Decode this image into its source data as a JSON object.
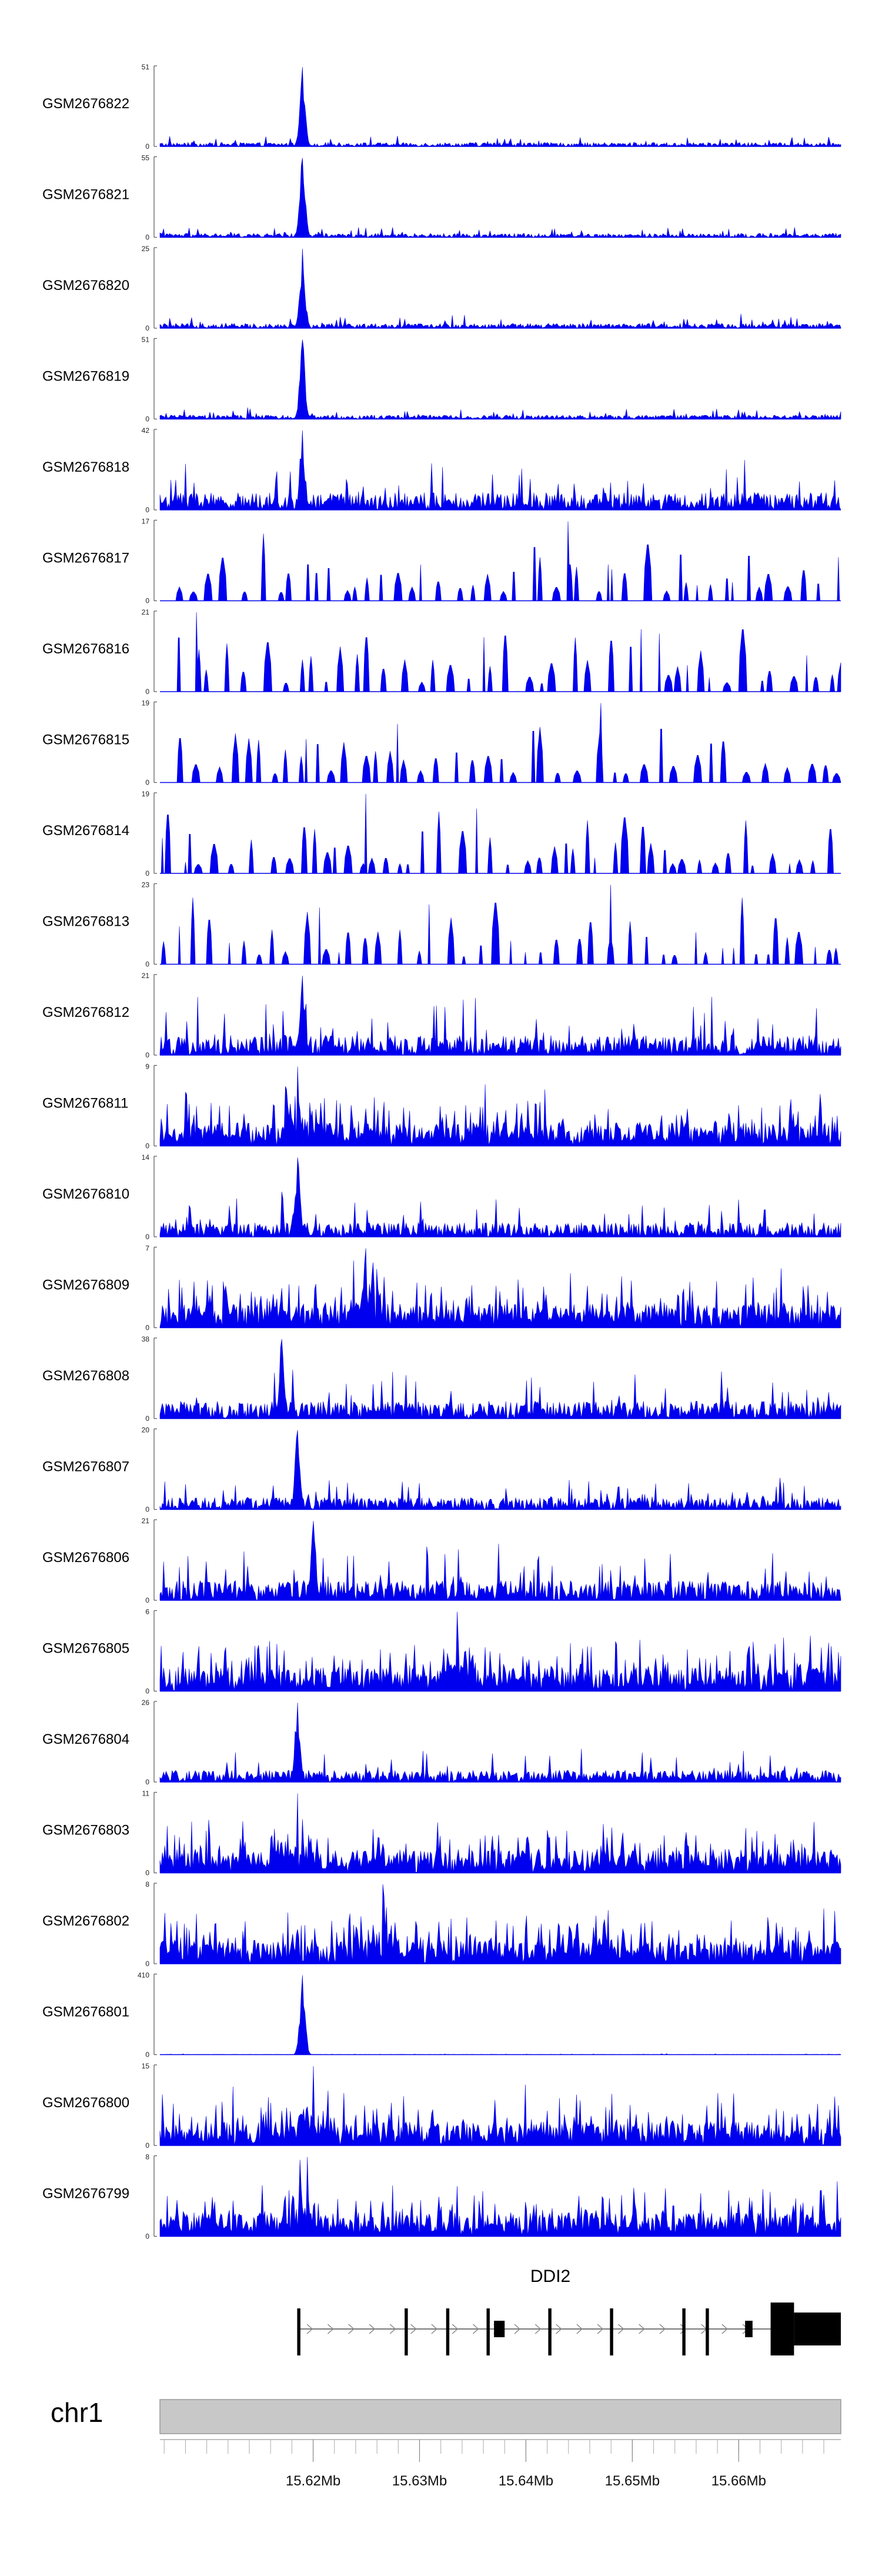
{
  "chart_data": {
    "type": "area",
    "title": "",
    "description_of_type": "genome browser coverage tracks",
    "track_color": "#0000ee",
    "region": {
      "chrom": "chr1",
      "start_mb": 15.6056,
      "end_mb": 15.6696
    },
    "tracks": [
      {
        "name": "GSM2676822",
        "ymax": "51",
        "max": 51,
        "style": "peak",
        "peak_mb": 15.619,
        "noise": 0.05
      },
      {
        "name": "GSM2676821",
        "ymax": "55",
        "max": 55,
        "style": "peak",
        "peak_mb": 15.619,
        "noise": 0.05
      },
      {
        "name": "GSM2676820",
        "ymax": "25",
        "max": 25,
        "style": "peak",
        "peak_mb": 15.619,
        "noise": 0.06
      },
      {
        "name": "GSM2676819",
        "ymax": "51",
        "max": 51,
        "style": "peak",
        "peak_mb": 15.619,
        "noise": 0.05
      },
      {
        "name": "GSM2676818",
        "ymax": "42",
        "max": 42,
        "style": "peak",
        "peak_mb": 15.619,
        "noise": 0.22
      },
      {
        "name": "GSM2676817",
        "ymax": "17",
        "max": 17,
        "style": "sparse",
        "peak_mb": 15.644,
        "noise": 0.0
      },
      {
        "name": "GSM2676816",
        "ymax": "21",
        "max": 21,
        "style": "sparse",
        "peak_mb": 15.609,
        "noise": 0.0
      },
      {
        "name": "GSM2676815",
        "ymax": "19",
        "max": 19,
        "style": "sparse",
        "peak_mb": 15.647,
        "noise": 0.0
      },
      {
        "name": "GSM2676814",
        "ymax": "19",
        "max": 19,
        "style": "sparse",
        "peak_mb": 15.625,
        "noise": 0.0
      },
      {
        "name": "GSM2676813",
        "ymax": "23",
        "max": 23,
        "style": "sparse",
        "peak_mb": 15.648,
        "noise": 0.0
      },
      {
        "name": "GSM2676812",
        "ymax": "21",
        "max": 21,
        "style": "peak",
        "peak_mb": 15.619,
        "noise": 0.25
      },
      {
        "name": "GSM2676811",
        "ymax": "9",
        "max": 9,
        "style": "dense",
        "peak_mb": 15.6185,
        "noise": 0.0
      },
      {
        "name": "GSM2676810",
        "ymax": "14",
        "max": 14,
        "style": "peak",
        "peak_mb": 15.6185,
        "noise": 0.18
      },
      {
        "name": "GSM2676809",
        "ymax": "7",
        "max": 7,
        "style": "dense",
        "peak_mb": 15.625,
        "noise": 0.0
      },
      {
        "name": "GSM2676808",
        "ymax": "38",
        "max": 38,
        "style": "peak",
        "peak_mb": 15.617,
        "noise": 0.22
      },
      {
        "name": "GSM2676807",
        "ymax": "20",
        "max": 20,
        "style": "peak",
        "peak_mb": 15.6185,
        "noise": 0.15
      },
      {
        "name": "GSM2676806",
        "ymax": "21",
        "max": 21,
        "style": "peak",
        "peak_mb": 15.62,
        "noise": 0.25
      },
      {
        "name": "GSM2676805",
        "ymax": "6",
        "max": 6,
        "style": "dense",
        "peak_mb": 15.6335,
        "noise": 0.0
      },
      {
        "name": "GSM2676804",
        "ymax": "26",
        "max": 26,
        "style": "peak",
        "peak_mb": 15.6185,
        "noise": 0.15
      },
      {
        "name": "GSM2676803",
        "ymax": "11",
        "max": 11,
        "style": "dense",
        "peak_mb": 15.6185,
        "noise": 0.0
      },
      {
        "name": "GSM2676802",
        "ymax": "8",
        "max": 8,
        "style": "dense",
        "peak_mb": 15.6265,
        "noise": 0.0
      },
      {
        "name": "GSM2676801",
        "ymax": "410",
        "max": 410,
        "style": "peak",
        "peak_mb": 15.619,
        "noise": 0.004
      },
      {
        "name": "GSM2676800",
        "ymax": "15",
        "max": 15,
        "style": "dense",
        "peak_mb": 15.62,
        "noise": 0.0
      },
      {
        "name": "GSM2676799",
        "ymax": "8",
        "max": 8,
        "style": "dense",
        "peak_mb": 15.6195,
        "noise": 0.0
      }
    ],
    "gene": {
      "name": "DDI2",
      "start_mb": 15.6185,
      "end_mb": 15.6696,
      "exons_mb": [
        [
          15.6185,
          15.6188
        ],
        [
          15.6286,
          15.6289
        ],
        [
          15.6325,
          15.6328
        ],
        [
          15.6363,
          15.6366
        ],
        [
          15.637,
          15.638
        ],
        [
          15.6421,
          15.6424
        ],
        [
          15.6479,
          15.6482
        ],
        [
          15.6547,
          15.655
        ],
        [
          15.6569,
          15.6572
        ],
        [
          15.6606,
          15.6613
        ]
      ],
      "utr_mb": [
        [
          15.663,
          15.6652
        ]
      ],
      "cds_mb": [
        [
          15.6652,
          15.6696
        ]
      ]
    },
    "axis": {
      "chromosome_label": "chr1",
      "tick_labels": [
        "15.62Mb",
        "15.63Mb",
        "15.64Mb",
        "15.65Mb",
        "15.66Mb"
      ],
      "tick_values_mb": [
        15.62,
        15.63,
        15.64,
        15.65,
        15.66
      ],
      "minor_step_mb": 0.002
    }
  }
}
